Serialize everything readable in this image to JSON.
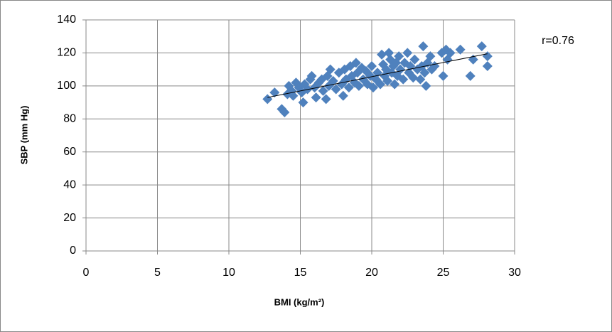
{
  "chart_data": {
    "type": "scatter",
    "xlabel": "BMI (kg/m²)",
    "ylabel": "SBP (mm  Hg)",
    "annotation": "r=0.76",
    "x": [
      12.7,
      13.2,
      13.7,
      13.9,
      14.1,
      14.2,
      14.4,
      14.5,
      14.7,
      14.9,
      15.1,
      15.2,
      15.3,
      15.5,
      15.7,
      15.8,
      16.0,
      16.1,
      16.3,
      16.5,
      16.6,
      16.8,
      16.9,
      17.0,
      17.1,
      17.3,
      17.5,
      17.7,
      17.9,
      18.0,
      18.1,
      18.2,
      18.4,
      18.5,
      18.6,
      18.8,
      18.9,
      19.0,
      19.1,
      19.3,
      19.4,
      19.6,
      19.7,
      19.9,
      20.0,
      20.1,
      20.3,
      20.4,
      20.6,
      20.7,
      20.8,
      20.9,
      21.0,
      21.1,
      21.2,
      21.3,
      21.4,
      21.5,
      21.6,
      21.7,
      21.8,
      21.9,
      22.0,
      22.2,
      22.3,
      22.5,
      22.6,
      22.7,
      22.9,
      23.0,
      23.2,
      23.4,
      23.5,
      23.6,
      23.7,
      23.8,
      23.9,
      24.1,
      24.2,
      24.4,
      24.9,
      25.0,
      25.2,
      25.3,
      25.5,
      26.2,
      26.9,
      27.1,
      27.7,
      28.1,
      28.1
    ],
    "values": [
      92,
      96,
      86,
      84,
      95,
      100,
      97,
      94,
      102,
      99,
      96,
      90,
      101,
      98,
      104,
      106,
      99,
      93,
      102,
      104,
      97,
      92,
      106,
      100,
      110,
      103,
      98,
      108,
      101,
      94,
      110,
      104,
      99,
      112,
      106,
      102,
      114,
      108,
      100,
      111,
      104,
      109,
      101,
      106,
      112,
      99,
      104,
      108,
      101,
      119,
      113,
      106,
      110,
      103,
      120,
      116,
      108,
      112,
      101,
      114,
      106,
      118,
      110,
      104,
      114,
      120,
      108,
      112,
      105,
      116,
      110,
      104,
      112,
      124,
      108,
      100,
      114,
      118,
      110,
      112,
      120,
      106,
      122,
      116,
      120,
      122,
      106,
      116,
      124,
      118,
      112
    ],
    "color": "#4f81bd",
    "trendline": {
      "x": [
        12.7,
        28.1
      ],
      "y": [
        93,
        119.5
      ],
      "color": "#000000"
    },
    "xlim": [
      0,
      30
    ],
    "ylim": [
      0,
      140
    ],
    "xticks": [
      0,
      5,
      10,
      15,
      20,
      25,
      30
    ],
    "yticks": [
      0,
      20,
      40,
      60,
      80,
      100,
      120,
      140
    ],
    "grid": true
  }
}
